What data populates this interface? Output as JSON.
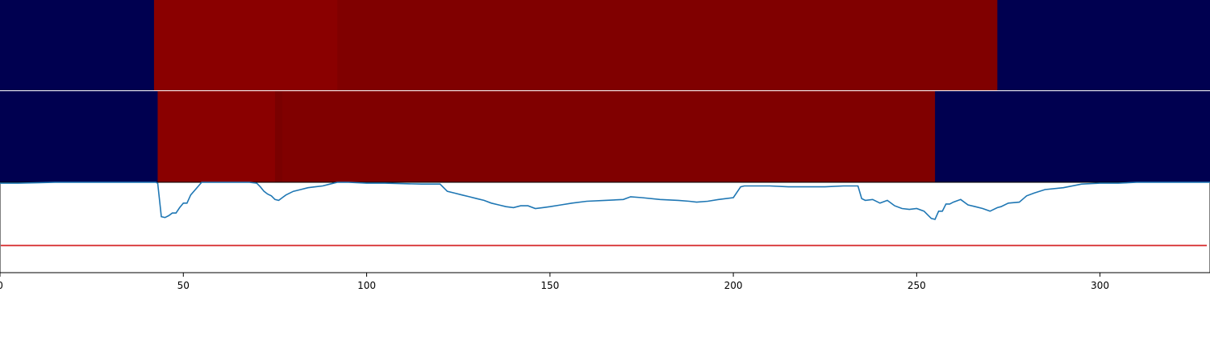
{
  "chart_data": {
    "type": "heatmap",
    "title": "",
    "xlabel": "",
    "ylabel": "",
    "xlim": [
      0,
      330
    ],
    "x_ticks": [
      "0",
      "50",
      "100",
      "150",
      "200",
      "250",
      "300"
    ],
    "x_tick_values": [
      0,
      50,
      100,
      150,
      200,
      250,
      300
    ],
    "colors": {
      "low": "#000050",
      "high_bright": "#8a0000",
      "high": "#800000",
      "high_dark": "#7a0000",
      "line": "#1f77b4",
      "threshold": "#d62728",
      "axis": "#000000"
    },
    "heatmap_rows": [
      {
        "segments": [
          {
            "x0": 0,
            "x1": 42,
            "color": "#000050"
          },
          {
            "x0": 42,
            "x1": 92,
            "color": "#8a0000"
          },
          {
            "x0": 92,
            "x1": 272,
            "color": "#800000"
          },
          {
            "x0": 272,
            "x1": 330,
            "color": "#000050"
          }
        ]
      },
      {
        "segments": [
          {
            "x0": 0,
            "x1": 43,
            "color": "#000050"
          },
          {
            "x0": 43,
            "x1": 75,
            "color": "#8a0000"
          },
          {
            "x0": 75,
            "x1": 77,
            "color": "#7a0000"
          },
          {
            "x0": 77,
            "x1": 255,
            "color": "#800000"
          },
          {
            "x0": 255,
            "x1": 330,
            "color": "#000050"
          }
        ]
      }
    ],
    "line_panel": {
      "ylim": [
        0,
        1
      ],
      "threshold": 0.3,
      "series": {
        "x": [
          0,
          5,
          10,
          15,
          20,
          25,
          30,
          35,
          40,
          42,
          42.5,
          43,
          44,
          45,
          46,
          47,
          48,
          49,
          50,
          51,
          52,
          55,
          60,
          65,
          68,
          70,
          71,
          72,
          73,
          74,
          75,
          76,
          77,
          78,
          80,
          82,
          84,
          86,
          88,
          90,
          92,
          95,
          100,
          105,
          110,
          115,
          120,
          122,
          124,
          126,
          128,
          130,
          132,
          134,
          136,
          138,
          140,
          142,
          144,
          146,
          148,
          150,
          153,
          156,
          160,
          165,
          170,
          172,
          175,
          180,
          185,
          188,
          190,
          193,
          196,
          200,
          202,
          203,
          205,
          210,
          215,
          220,
          225,
          230,
          234,
          235,
          236,
          238,
          240,
          242,
          244,
          246,
          248,
          250,
          252,
          253,
          254,
          255,
          256,
          257,
          258,
          259,
          260,
          262,
          264,
          266,
          268,
          270,
          272,
          273,
          275,
          278,
          280,
          282,
          285,
          290,
          295,
          300,
          305,
          310,
          315,
          320,
          325,
          330
        ],
        "y": [
          0.99,
          0.99,
          0.995,
          1.0,
          1.0,
          1.0,
          1.0,
          1.0,
          1.0,
          1.0,
          1.0,
          0.99,
          0.62,
          0.61,
          0.63,
          0.66,
          0.66,
          0.72,
          0.77,
          0.77,
          0.86,
          1.0,
          1.0,
          1.0,
          1.0,
          0.99,
          0.95,
          0.9,
          0.87,
          0.85,
          0.81,
          0.8,
          0.83,
          0.86,
          0.9,
          0.92,
          0.94,
          0.95,
          0.96,
          0.98,
          1.0,
          1.0,
          0.99,
          0.99,
          0.985,
          0.98,
          0.98,
          0.9,
          0.88,
          0.86,
          0.84,
          0.82,
          0.8,
          0.77,
          0.75,
          0.73,
          0.72,
          0.74,
          0.74,
          0.71,
          0.72,
          0.73,
          0.75,
          0.77,
          0.79,
          0.8,
          0.81,
          0.84,
          0.83,
          0.81,
          0.8,
          0.79,
          0.78,
          0.79,
          0.81,
          0.83,
          0.95,
          0.96,
          0.96,
          0.96,
          0.95,
          0.95,
          0.95,
          0.96,
          0.96,
          0.82,
          0.8,
          0.81,
          0.77,
          0.8,
          0.74,
          0.71,
          0.7,
          0.71,
          0.68,
          0.64,
          0.6,
          0.59,
          0.68,
          0.68,
          0.76,
          0.76,
          0.78,
          0.81,
          0.75,
          0.73,
          0.71,
          0.68,
          0.72,
          0.73,
          0.77,
          0.78,
          0.85,
          0.88,
          0.92,
          0.94,
          0.98,
          0.99,
          0.99,
          1.0,
          1.0,
          1.0,
          1.0,
          1.0
        ]
      }
    }
  }
}
